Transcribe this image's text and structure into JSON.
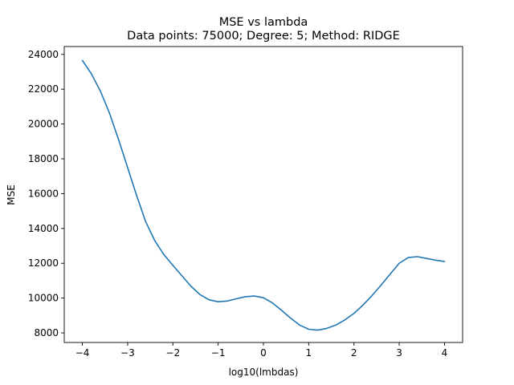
{
  "chart_data": {
    "type": "line",
    "title": "MSE vs lambda",
    "subtitle": "Data points: 75000; Degree: 5; Method: RIDGE",
    "xlabel": "log10(lmbdas)",
    "ylabel": "MSE",
    "xlim": [
      -4.4,
      4.4
    ],
    "ylim": [
      7450,
      24450
    ],
    "xticks": [
      -4,
      -3,
      -2,
      -1,
      0,
      1,
      2,
      3,
      4
    ],
    "xtick_labels": [
      "−4",
      "−3",
      "−2",
      "−1",
      "0",
      "1",
      "2",
      "3",
      "4"
    ],
    "yticks": [
      8000,
      10000,
      12000,
      14000,
      16000,
      18000,
      20000,
      22000,
      24000
    ],
    "ytick_labels": [
      "8000",
      "10000",
      "12000",
      "14000",
      "16000",
      "18000",
      "20000",
      "22000",
      "24000"
    ],
    "grid": false,
    "series": [
      {
        "color": "#1f77b4",
        "x": [
          -4.0,
          -3.8,
          -3.6,
          -3.4,
          -3.2,
          -3.0,
          -2.8,
          -2.6,
          -2.4,
          -2.2,
          -2.0,
          -1.8,
          -1.6,
          -1.4,
          -1.2,
          -1.0,
          -0.8,
          -0.6,
          -0.4,
          -0.2,
          0.0,
          0.2,
          0.4,
          0.6,
          0.8,
          1.0,
          1.2,
          1.4,
          1.6,
          1.8,
          2.0,
          2.2,
          2.4,
          2.6,
          2.8,
          3.0,
          3.2,
          3.4,
          3.6,
          3.8,
          4.0
        ],
        "y": [
          23650,
          22880,
          21880,
          20620,
          19100,
          17500,
          15880,
          14380,
          13300,
          12500,
          11880,
          11280,
          10680,
          10200,
          9900,
          9790,
          9830,
          9960,
          10080,
          10120,
          10020,
          9720,
          9300,
          8850,
          8450,
          8210,
          8160,
          8260,
          8450,
          8750,
          9120,
          9600,
          10150,
          10750,
          11380,
          12000,
          12330,
          12380,
          12280,
          12180,
          12100
        ]
      }
    ]
  }
}
